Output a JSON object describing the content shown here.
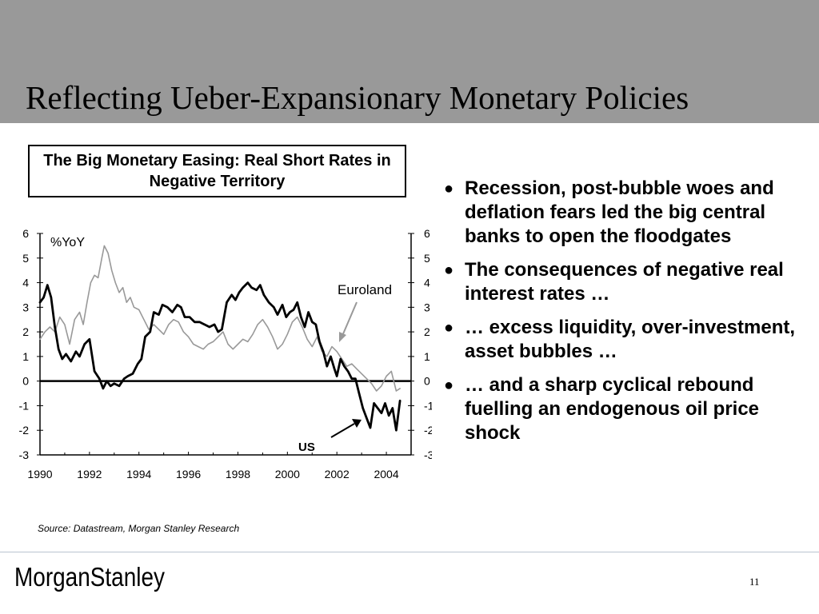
{
  "slide": {
    "title": "Reflecting Ueber-Expansionary Monetary Policies",
    "chart_box_title": "The Big Monetary Easing: Real Short Rates in Negative Territory",
    "bullets": [
      "Recession, post-bubble woes and deflation fears led the big central banks to open the floodgates",
      "The consequences of negative real interest rates …",
      "… excess liquidity, over-investment, asset bubbles …",
      "… and a sharp cyclical rebound fuelling an endogenous oil price shock"
    ],
    "source": "Source: Datastream, Morgan Stanley Research",
    "page_number": "11",
    "logo_text": "MorganStanley"
  },
  "chart_data": {
    "type": "line",
    "title": "The Big Monetary Easing: Real Short Rates in Negative Territory",
    "unit_label": "%YoY",
    "ylim": [
      -3,
      6
    ],
    "y_ticks": [
      "6",
      "5",
      "4",
      "3",
      "2",
      "1",
      "0",
      "-1",
      "-2",
      "-3"
    ],
    "xlim": [
      1990,
      2005
    ],
    "x_tick_labels": [
      "1990",
      "1992",
      "1994",
      "1996",
      "1998",
      "2000",
      "2002",
      "2004"
    ],
    "zero_line": true,
    "series": [
      {
        "name": "US",
        "color": "#000000",
        "x": [
          1990.0,
          1990.15,
          1990.3,
          1990.45,
          1990.6,
          1990.75,
          1990.9,
          1991.05,
          1991.25,
          1991.45,
          1991.6,
          1991.8,
          1992.0,
          1992.2,
          1992.4,
          1992.55,
          1992.7,
          1992.85,
          1993.0,
          1993.2,
          1993.4,
          1993.55,
          1993.75,
          1993.95,
          1994.1,
          1994.25,
          1994.45,
          1994.6,
          1994.8,
          1994.95,
          1995.15,
          1995.35,
          1995.55,
          1995.7,
          1995.85,
          1996.05,
          1996.25,
          1996.45,
          1996.65,
          1996.85,
          1997.05,
          1997.2,
          1997.35,
          1997.55,
          1997.75,
          1997.9,
          1998.05,
          1998.2,
          1998.4,
          1998.55,
          1998.75,
          1998.9,
          1999.05,
          1999.25,
          1999.45,
          1999.6,
          1999.8,
          1999.95,
          2000.1,
          2000.25,
          2000.4,
          2000.55,
          2000.7,
          2000.85,
          2001.0,
          2001.15,
          2001.3,
          2001.45,
          2001.6,
          2001.75,
          2001.9,
          2002.0,
          2002.15,
          2002.3,
          2002.45,
          2002.6,
          2002.75,
          2002.9,
          2003.05,
          2003.2,
          2003.35,
          2003.5,
          2003.65,
          2003.8,
          2003.95,
          2004.1,
          2004.25,
          2004.4,
          2004.55
        ],
        "values": [
          3.2,
          3.4,
          3.9,
          3.4,
          2.2,
          1.3,
          0.9,
          1.1,
          0.8,
          1.2,
          1.0,
          1.5,
          1.7,
          0.4,
          0.1,
          -0.3,
          0.0,
          -0.2,
          -0.1,
          -0.2,
          0.1,
          0.2,
          0.3,
          0.7,
          0.9,
          1.8,
          2.0,
          2.8,
          2.7,
          3.1,
          3.0,
          2.8,
          3.1,
          3.0,
          2.6,
          2.6,
          2.4,
          2.4,
          2.3,
          2.2,
          2.3,
          2.0,
          2.1,
          3.2,
          3.5,
          3.3,
          3.6,
          3.8,
          4.0,
          3.8,
          3.7,
          3.9,
          3.5,
          3.2,
          3.0,
          2.7,
          3.1,
          2.6,
          2.8,
          2.9,
          3.2,
          2.6,
          2.2,
          2.8,
          2.4,
          2.3,
          1.6,
          1.2,
          0.6,
          1.0,
          0.5,
          0.2,
          0.9,
          0.6,
          0.4,
          0.1,
          0.1,
          -0.5,
          -1.1,
          -1.5,
          -1.9,
          -0.9,
          -1.1,
          -1.3,
          -0.9,
          -1.4,
          -1.1,
          -2.0,
          -0.8
        ]
      },
      {
        "name": "Euroland",
        "color": "#999999",
        "x": [
          1990.0,
          1990.2,
          1990.4,
          1990.6,
          1990.8,
          1991.0,
          1991.2,
          1991.4,
          1991.6,
          1991.75,
          1991.9,
          1992.05,
          1992.2,
          1992.35,
          1992.5,
          1992.6,
          1992.75,
          1992.9,
          1993.05,
          1993.2,
          1993.35,
          1993.5,
          1993.65,
          1993.8,
          1994.0,
          1994.2,
          1994.4,
          1994.6,
          1994.8,
          1995.0,
          1995.2,
          1995.4,
          1995.6,
          1995.8,
          1996.0,
          1996.2,
          1996.4,
          1996.6,
          1996.8,
          1997.0,
          1997.2,
          1997.4,
          1997.6,
          1997.8,
          1998.0,
          1998.2,
          1998.4,
          1998.6,
          1998.8,
          1999.0,
          1999.2,
          1999.4,
          1999.6,
          1999.8,
          2000.0,
          2000.2,
          2000.4,
          2000.6,
          2000.8,
          2001.0,
          2001.2,
          2001.4,
          2001.6,
          2001.8,
          2002.0,
          2002.2,
          2002.4,
          2002.6,
          2002.8,
          2003.0,
          2003.2,
          2003.4,
          2003.6,
          2003.8,
          2004.0,
          2004.2,
          2004.4,
          2004.55
        ],
        "values": [
          1.7,
          2.0,
          2.2,
          2.0,
          2.6,
          2.3,
          1.5,
          2.5,
          2.8,
          2.3,
          3.2,
          4.0,
          4.3,
          4.2,
          5.0,
          5.5,
          5.2,
          4.5,
          4.0,
          3.6,
          3.8,
          3.2,
          3.4,
          3.0,
          2.9,
          2.5,
          2.1,
          2.3,
          2.1,
          1.9,
          2.3,
          2.5,
          2.4,
          2.0,
          1.8,
          1.5,
          1.4,
          1.3,
          1.5,
          1.6,
          1.8,
          2.0,
          1.5,
          1.3,
          1.5,
          1.7,
          1.6,
          1.9,
          2.3,
          2.5,
          2.2,
          1.8,
          1.3,
          1.5,
          1.9,
          2.4,
          2.6,
          2.2,
          1.7,
          1.4,
          1.8,
          1.2,
          1.0,
          1.4,
          1.2,
          0.9,
          0.6,
          0.7,
          0.5,
          0.3,
          0.1,
          -0.1,
          -0.4,
          -0.2,
          0.2,
          0.4,
          -0.4,
          -0.3
        ]
      }
    ],
    "annotations": [
      {
        "text": "Euroland",
        "series": "Euroland"
      },
      {
        "text": "US",
        "series": "US"
      }
    ]
  }
}
